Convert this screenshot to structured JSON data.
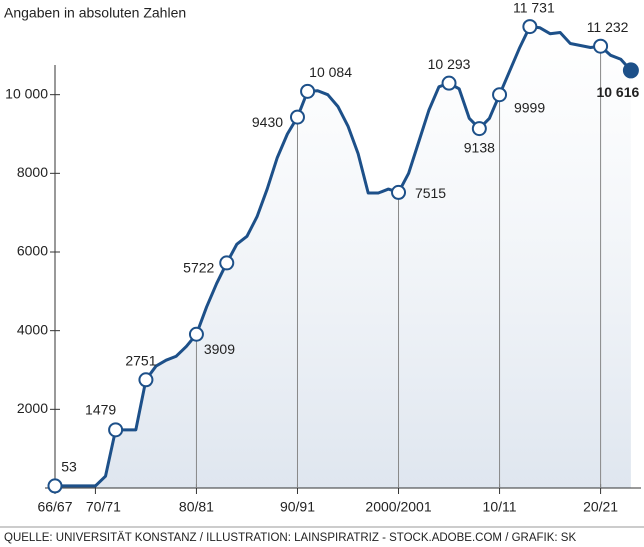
{
  "chart_data": {
    "type": "line",
    "title": "Angaben in absoluten Zahlen",
    "source": "QUELLE: UNIVERSITÄT KONSTANZ / ILLUSTRATION: LAINSPIRATRIZ - STOCK.ADOBE.COM / GRAFIK: SK",
    "x": [
      1966,
      1967,
      1968,
      1969,
      1970,
      1971,
      1972,
      1973,
      1974,
      1975,
      1976,
      1977,
      1978,
      1979,
      1980,
      1981,
      1982,
      1983,
      1984,
      1985,
      1986,
      1987,
      1988,
      1989,
      1990,
      1991,
      1992,
      1993,
      1994,
      1995,
      1996,
      1997,
      1998,
      1999,
      2000,
      2001,
      2002,
      2003,
      2004,
      2005,
      2006,
      2007,
      2008,
      2009,
      2010,
      2011,
      2012,
      2013,
      2014,
      2015,
      2016,
      2017,
      2018,
      2019,
      2020,
      2021,
      2022,
      2023
    ],
    "values": [
      53,
      53,
      53,
      53,
      53,
      300,
      1479,
      1479,
      1479,
      2751,
      3100,
      3250,
      3350,
      3600,
      3909,
      4600,
      5200,
      5722,
      6200,
      6400,
      6900,
      7600,
      8400,
      9000,
      9430,
      10084,
      10100,
      10000,
      9700,
      9200,
      8500,
      7500,
      7500,
      7600,
      7515,
      8000,
      8800,
      9600,
      10200,
      10293,
      10150,
      9400,
      9138,
      9400,
      9999,
      10600,
      11200,
      11731,
      11700,
      11550,
      11580,
      11300,
      11250,
      11200,
      11232,
      11000,
      10900,
      10616
    ],
    "value_labels": [
      "53",
      null,
      null,
      null,
      null,
      null,
      "1479",
      null,
      null,
      "2751",
      null,
      null,
      null,
      null,
      "3909",
      null,
      null,
      "5722",
      null,
      null,
      null,
      null,
      null,
      null,
      "9430",
      "10 084",
      null,
      null,
      null,
      null,
      null,
      null,
      null,
      null,
      "7515",
      null,
      null,
      null,
      null,
      "10 293",
      null,
      null,
      "9138",
      null,
      "9999",
      null,
      null,
      "11 731",
      null,
      null,
      null,
      null,
      null,
      null,
      "11 232",
      null,
      null,
      "10 616"
    ],
    "color": "#1d5089",
    "xlim": [
      1966,
      2024
    ],
    "xticks": [
      {
        "value": 1966,
        "label": "66/67"
      },
      {
        "value": 1970,
        "label": "70/71"
      },
      {
        "value": 1980,
        "label": "80/81"
      },
      {
        "value": 1990,
        "label": "90/91"
      },
      {
        "value": 2000,
        "label": "2000/2001"
      },
      {
        "value": 2010,
        "label": "10/11"
      },
      {
        "value": 2020,
        "label": "20/21"
      }
    ],
    "ylim": [
      0,
      12000
    ],
    "yticks": [
      2000,
      4000,
      6000,
      8000,
      {
        "value": 10000,
        "label": "10 000"
      }
    ]
  }
}
